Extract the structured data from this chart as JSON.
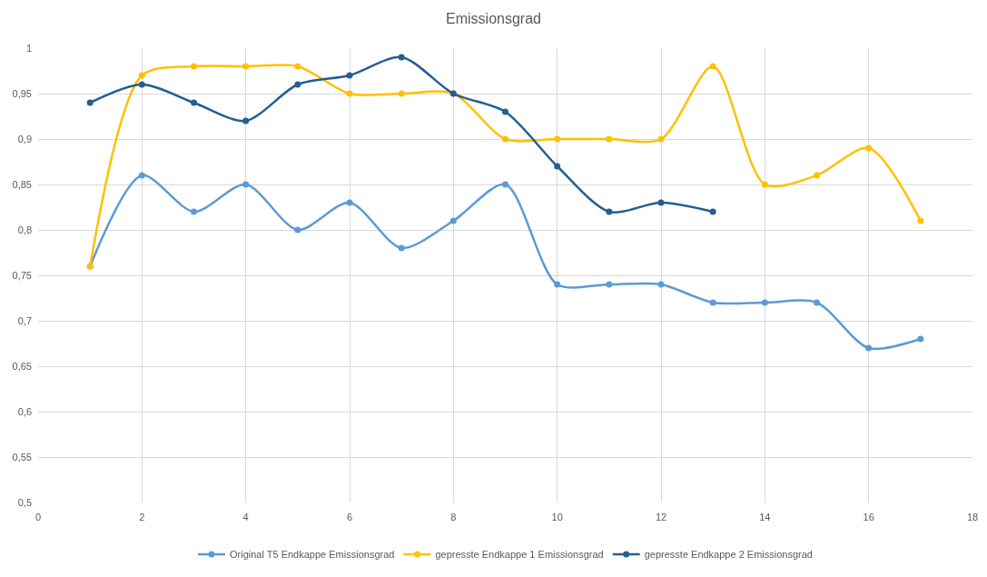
{
  "chart_data": {
    "type": "line",
    "title": "Emissionsgrad",
    "series": [
      {
        "name": "Original T5 Endkappe Emissionsgrad",
        "color": "#5b9bd5",
        "x": [
          1,
          2,
          3,
          4,
          5,
          6,
          7,
          8,
          9,
          10,
          11,
          12,
          13,
          14,
          15,
          16,
          17
        ],
        "values": [
          0.76,
          0.86,
          0.82,
          0.85,
          0.8,
          0.83,
          0.78,
          0.81,
          0.85,
          0.74,
          0.74,
          0.74,
          0.72,
          0.72,
          0.72,
          0.67,
          0.68
        ]
      },
      {
        "name": "gepresste Endkappe 1 Emissionsgrad",
        "color": "#ffc000",
        "x": [
          1,
          2,
          3,
          4,
          5,
          6,
          7,
          8,
          9,
          10,
          11,
          12,
          13,
          14,
          15,
          16,
          17
        ],
        "values": [
          0.76,
          0.97,
          0.98,
          0.98,
          0.98,
          0.95,
          0.95,
          0.95,
          0.9,
          0.9,
          0.9,
          0.9,
          0.98,
          0.85,
          0.86,
          0.89,
          0.81
        ]
      },
      {
        "name": "gepresste Endkappe 2 Emissionsgrad",
        "color": "#255e91",
        "x": [
          1,
          2,
          3,
          4,
          5,
          6,
          7,
          8,
          9,
          10,
          11,
          12,
          13
        ],
        "values": [
          0.94,
          0.96,
          0.94,
          0.92,
          0.96,
          0.97,
          0.99,
          0.95,
          0.93,
          0.87,
          0.82,
          0.83,
          0.82
        ]
      }
    ],
    "xlim": [
      0,
      18
    ],
    "xticks": [
      0,
      2,
      4,
      6,
      8,
      10,
      12,
      14,
      16,
      18
    ],
    "ylim": [
      0.5,
      1
    ],
    "yticks": [
      {
        "value": 0.5,
        "label": "0,5"
      },
      {
        "value": 0.55,
        "label": "0,55"
      },
      {
        "value": 0.6,
        "label": "0,6"
      },
      {
        "value": 0.65,
        "label": "0,65"
      },
      {
        "value": 0.7,
        "label": "0,7"
      },
      {
        "value": 0.75,
        "label": "0,75"
      },
      {
        "value": 0.8,
        "label": "0,8"
      },
      {
        "value": 0.85,
        "label": "0,85"
      },
      {
        "value": 0.9,
        "label": "0,9"
      },
      {
        "value": 0.95,
        "label": "0,95"
      },
      {
        "value": 1,
        "label": "1"
      }
    ],
    "grid": true,
    "legend": "bottom",
    "marker": "circle",
    "line_style": "solid"
  }
}
